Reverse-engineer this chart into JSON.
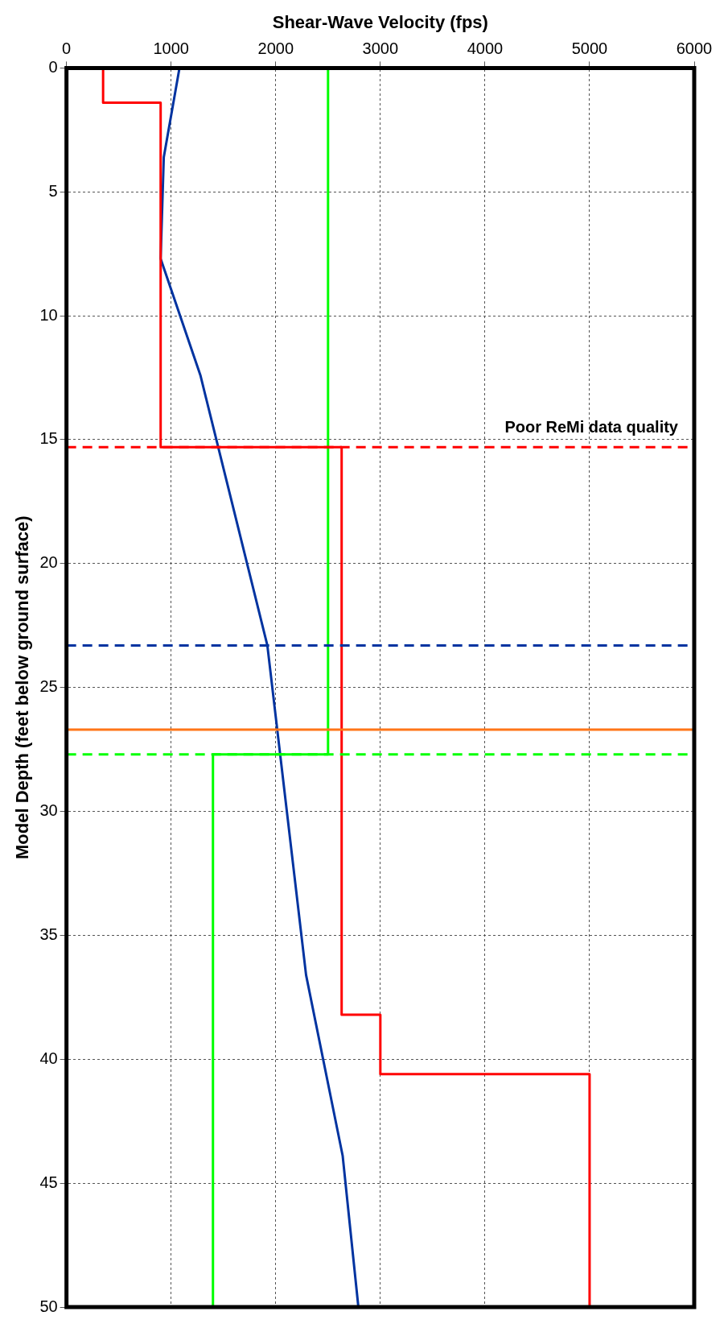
{
  "chart_data": {
    "type": "line",
    "xlabel": "Shear-Wave Velocity (fps)",
    "ylabel": "Model Depth (feet below ground surface)",
    "xlim": [
      0,
      6000
    ],
    "xticks": [
      0,
      1000,
      2000,
      3000,
      4000,
      5000,
      6000
    ],
    "ylim": [
      50,
      0
    ],
    "yticks": [
      0,
      5,
      10,
      15,
      20,
      25,
      30,
      35,
      40,
      45,
      50
    ],
    "grid": true,
    "legend": false,
    "marker": "none",
    "series": [
      {
        "color": "#ff0000",
        "x": [
          350,
          350,
          900,
          900,
          2630,
          2630,
          3000,
          3000,
          5000,
          5000
        ],
        "values": [
          0,
          1.4,
          1.4,
          15.3,
          15.3,
          38.2,
          38.2,
          40.6,
          40.6,
          50
        ]
      },
      {
        "color": "#00ff00",
        "x": [
          2500,
          2500,
          1400,
          1400
        ],
        "values": [
          0,
          27.7,
          27.7,
          50
        ]
      },
      {
        "color": "#0033a0",
        "x": [
          1080,
          930,
          900,
          1280,
          1920,
          2290,
          2640,
          2790
        ],
        "values": [
          0,
          3.6,
          7.7,
          12.4,
          23.3,
          36.6,
          43.9,
          50
        ]
      }
    ],
    "ref_lines": [
      {
        "axis": "y",
        "value": 15.3,
        "label": "Poor ReMi data quality",
        "color": "#ff0000",
        "line_style": "dashed"
      },
      {
        "axis": "y",
        "value": 23.3,
        "color": "#0033a0",
        "line_style": "dashed"
      },
      {
        "axis": "y",
        "value": 26.7,
        "color": "#ff7518",
        "line_style": "solid"
      },
      {
        "axis": "y",
        "value": 27.7,
        "color": "#00ff00",
        "line_style": "dashed"
      }
    ]
  }
}
